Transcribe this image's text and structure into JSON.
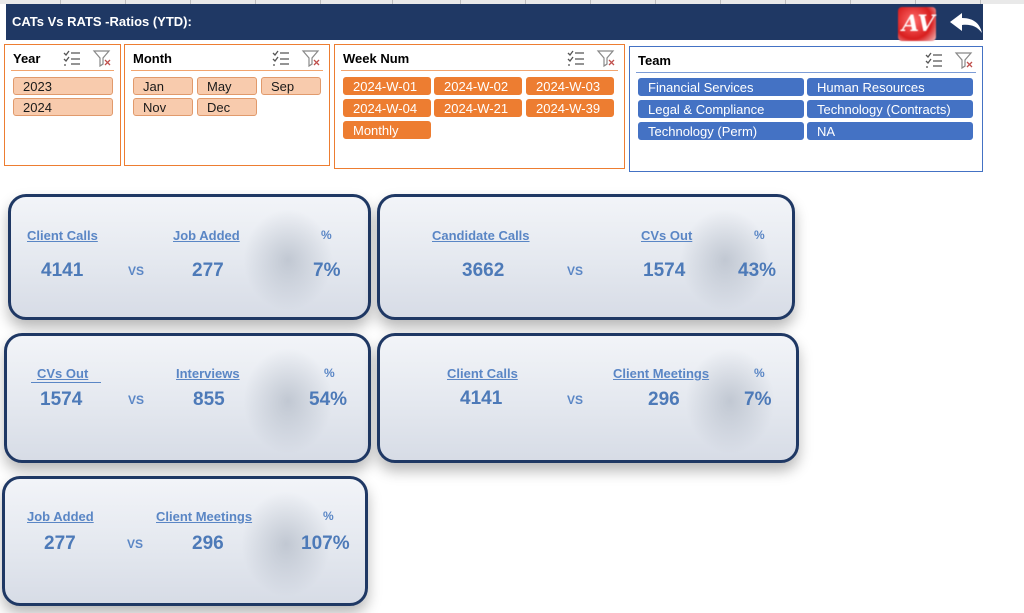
{
  "header": {
    "title": "CATs Vs RATS -Ratios (YTD):",
    "logo_text": "AV"
  },
  "slicers": {
    "year": {
      "title": "Year",
      "items": [
        "2023",
        "2024"
      ]
    },
    "month": {
      "title": "Month",
      "items": [
        "Jan",
        "May",
        "Sep",
        "Nov",
        "Dec"
      ]
    },
    "week": {
      "title": "Week Num",
      "items": [
        "2024-W-01",
        "2024-W-02",
        "2024-W-03",
        "2024-W-04",
        "2024-W-21",
        "2024-W-39",
        "Monthly"
      ]
    },
    "team": {
      "title": "Team",
      "items": [
        "Financial Services",
        "Human Resources",
        "Legal & Compliance",
        "Technology (Contracts)",
        "Technology (Perm)",
        "NA"
      ]
    }
  },
  "cards": [
    {
      "left_label": "Client Calls",
      "left_value": "4141",
      "vs": "VS",
      "right_label": "Job Added",
      "right_value": "277",
      "pct_label": "%",
      "pct_value": "7%"
    },
    {
      "left_label": "Candidate Calls",
      "left_value": "3662",
      "vs": "VS",
      "right_label": "CVs Out",
      "right_value": "1574",
      "pct_label": "%",
      "pct_value": "43%"
    },
    {
      "left_label": "CVs Out",
      "left_value": "1574",
      "vs": "VS",
      "right_label": "Interviews",
      "right_value": "855",
      "pct_label": "%",
      "pct_value": "54%"
    },
    {
      "left_label": "Client Calls",
      "left_value": "4141",
      "vs": "VS",
      "right_label": "Client Meetings",
      "right_value": "296",
      "pct_label": "%",
      "pct_value": "7%"
    },
    {
      "left_label": "Job Added",
      "left_value": "277",
      "vs": "VS",
      "right_label": "Client Meetings",
      "right_value": "296",
      "pct_label": "%",
      "pct_value": "107%"
    }
  ],
  "icons": {
    "multi_select": "multi-select-icon",
    "clear_filter": "clear-filter-icon",
    "back": "back-arrow-icon"
  },
  "colors": {
    "header": "#1f3864",
    "orange": "#ed7d31",
    "peach": "#f8cbad",
    "blue": "#4472c4",
    "kpi_text": "#4d7ab8"
  }
}
